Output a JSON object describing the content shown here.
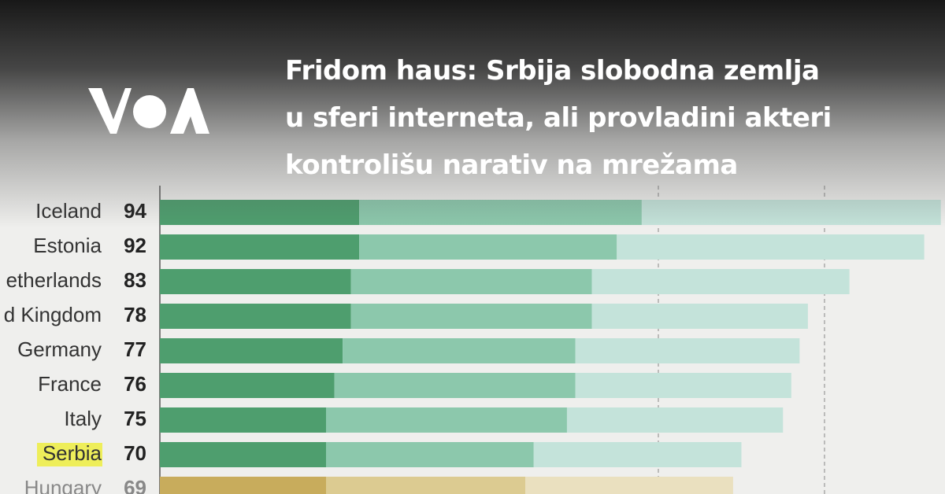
{
  "headline": {
    "lines": [
      "Fridom haus: Srbija slobodna zemlja",
      "u sferi interneta, ali provladini akteri",
      "kontrolišu narativ na mrežama"
    ]
  },
  "logo": {
    "name": "voa-logo",
    "text": "VOA"
  },
  "chart_data": {
    "type": "bar",
    "orientation": "horizontal",
    "stacked": true,
    "categories": [
      "Iceland",
      "Estonia",
      "Netherlands",
      "United Kingdom",
      "Germany",
      "France",
      "Italy",
      "Serbia",
      "Hungary"
    ],
    "visible_category_labels": [
      "Iceland",
      "Estonia",
      "etherlands",
      "d Kingdom",
      "Germany",
      "France",
      "Italy",
      "Serbia",
      "Hungary"
    ],
    "totals": [
      94,
      92,
      83,
      78,
      77,
      76,
      75,
      70,
      69
    ],
    "series": [
      {
        "values": [
          24,
          24,
          23,
          23,
          22,
          21,
          20,
          20,
          20
        ]
      },
      {
        "values": [
          34,
          31,
          29,
          29,
          28,
          29,
          29,
          25,
          24
        ]
      },
      {
        "values": [
          36,
          37,
          31,
          26,
          27,
          26,
          26,
          25,
          25
        ]
      }
    ],
    "highlight": "Serbia",
    "grid": true,
    "colors": {
      "free": [
        "#4e9e6e",
        "#8cc8ac",
        "#c4e3da"
      ],
      "partly_free": [
        "#c8ac5c",
        "#dccb91",
        "#eae0bf"
      ],
      "highlight_bg": "#eeee5a"
    }
  }
}
